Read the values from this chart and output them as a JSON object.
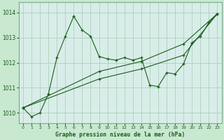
{
  "title": "Graphe pression niveau de la mer (hPa)",
  "bg_color": "#c8e8d0",
  "plot_bg_color": "#d8ede8",
  "line_color": "#1a5c1a",
  "grid_color": "#a8c8b8",
  "xlim": [
    -0.5,
    23.5
  ],
  "ylim": [
    1009.6,
    1014.4
  ],
  "yticks": [
    1010,
    1011,
    1012,
    1013,
    1014
  ],
  "xticks": [
    0,
    1,
    2,
    3,
    4,
    5,
    6,
    7,
    8,
    9,
    10,
    11,
    12,
    13,
    14,
    15,
    16,
    17,
    18,
    19,
    20,
    21,
    22,
    23
  ],
  "series1_x": [
    0,
    1,
    2,
    3,
    4,
    5,
    6,
    7,
    8,
    9,
    10,
    11,
    12,
    13,
    14,
    15,
    16,
    17,
    18,
    19,
    20,
    21,
    22,
    23
  ],
  "series1_y": [
    1010.2,
    1009.85,
    1010.0,
    1010.75,
    1012.2,
    1013.05,
    1013.85,
    1013.3,
    1013.05,
    1012.25,
    1012.15,
    1012.1,
    1012.2,
    1012.1,
    1012.2,
    1011.1,
    1011.05,
    1011.6,
    1011.55,
    1011.95,
    1012.8,
    1013.05,
    1013.6,
    1013.95
  ],
  "series2_x": [
    0,
    23
  ],
  "series2_y": [
    1010.2,
    1013.95
  ],
  "series3_x": [
    0,
    23
  ],
  "series3_y": [
    1010.2,
    1013.95
  ],
  "series2_mid_x": [
    0,
    9,
    14,
    19,
    23
  ],
  "series2_mid_y": [
    1010.2,
    1011.35,
    1011.75,
    1012.3,
    1013.95
  ],
  "series3_mid_x": [
    0,
    9,
    14,
    19,
    23
  ],
  "series3_mid_y": [
    1010.2,
    1011.65,
    1012.05,
    1012.75,
    1013.95
  ]
}
